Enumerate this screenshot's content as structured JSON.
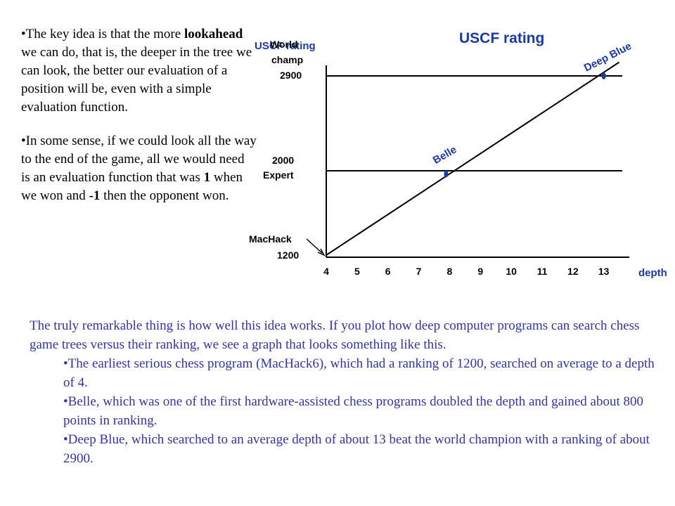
{
  "left": {
    "b1_part1": "The key idea is that the more ",
    "b1_bold": "lookahead",
    "b1_part2": " we can do, that is, the deeper in the tree we can look, the better our evaluation of a position will be, even with a simple evaluation function.",
    "b2_part1": "In some sense, if we could look all the way to the end of the game, all we would need is an evaluation function that was ",
    "b2_bold1": "1",
    "b2_part2": " when we won and ",
    "b2_bold2": "-1",
    "b2_part3": " then the opponent won."
  },
  "bottom": {
    "intro": "The truly remarkable thing is how well this idea works. If you plot how deep computer programs can search chess game trees versus their ranking, we see a graph that looks something like this.",
    "bullets": [
      "The earliest serious chess program (MacHack6), which had a ranking of 1200, searched on average to a depth of 4.",
      "Belle, which was one of the first hardware-assisted chess programs doubled the depth and gained about 800 points in ranking.",
      "Deep Blue, which searched to an average depth of about 13 beat the world champion with a ranking of about 2900."
    ]
  },
  "colors": {
    "blue": "#1a3aa6",
    "body_blue": "#3333aa",
    "black": "#000000"
  },
  "chart_data": {
    "type": "line",
    "title": "USCF rating",
    "ylabel": "USCF rating",
    "xlabel": "depth",
    "x_ticks": [
      "4",
      "5",
      "6",
      "7",
      "8",
      "9",
      "10",
      "11",
      "12",
      "13"
    ],
    "xlim": [
      4,
      13.6
    ],
    "ylim": [
      1200,
      3000
    ],
    "series": [
      {
        "x": [
          4,
          13.5
        ],
        "y": [
          1200,
          3030
        ]
      }
    ],
    "reference_lines": [
      {
        "y": 2900,
        "label": [
          "World",
          "champ",
          "2900"
        ]
      },
      {
        "y": 2000,
        "label": [
          "2000",
          "Expert"
        ]
      }
    ],
    "annotations": [
      {
        "label": "MacHack",
        "value_label": "1200",
        "x": 4,
        "y": 1200
      },
      {
        "label": "Belle",
        "x": 8,
        "y": 1950
      },
      {
        "label": "Deep Blue",
        "x": 13,
        "y": 2900
      }
    ]
  }
}
